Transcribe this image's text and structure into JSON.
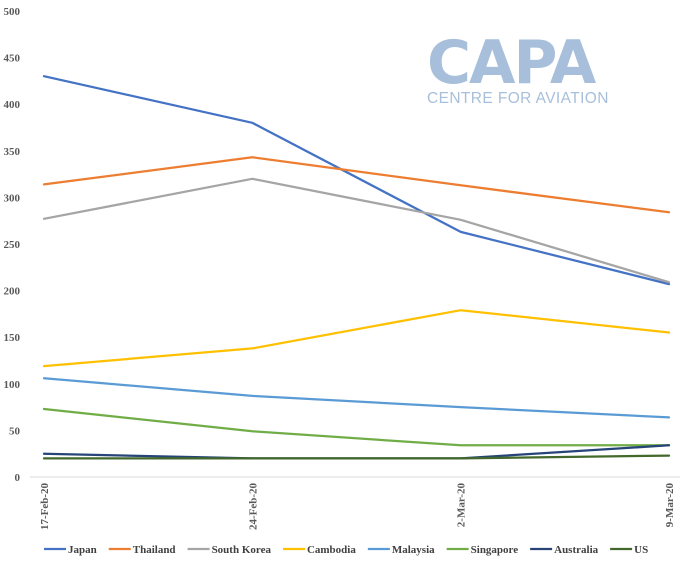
{
  "logo": {
    "main": "CAPA",
    "sub": "CENTRE FOR AVIATION",
    "color": "#a7bfdb"
  },
  "chart_data": {
    "type": "line",
    "title": "",
    "xlabel": "",
    "ylabel": "",
    "categories": [
      "17-Feb-20",
      "24-Feb-20",
      "2-Mar-20",
      "9-Mar-20"
    ],
    "ylim": [
      0,
      500
    ],
    "yticks": [
      0,
      50,
      100,
      150,
      200,
      250,
      300,
      350,
      400,
      450,
      500
    ],
    "grid": false,
    "legend_position": "bottom",
    "series": [
      {
        "name": "Japan",
        "color": "#4472c4",
        "values": [
          430,
          380,
          263,
          207
        ]
      },
      {
        "name": "Thailand",
        "color": "#ed7d31",
        "values": [
          314,
          343,
          313,
          284
        ]
      },
      {
        "name": "South Korea",
        "color": "#a5a5a5",
        "values": [
          277,
          320,
          276,
          209
        ]
      },
      {
        "name": "Cambodia",
        "color": "#ffc000",
        "values": [
          119,
          138,
          179,
          155
        ]
      },
      {
        "name": "Malaysia",
        "color": "#5b9bd5",
        "values": [
          106,
          87,
          75,
          64
        ]
      },
      {
        "name": "Singapore",
        "color": "#70ad47",
        "values": [
          73,
          49,
          34,
          34
        ]
      },
      {
        "name": "Australia",
        "color": "#264478",
        "values": [
          25,
          20,
          20,
          34
        ]
      },
      {
        "name": "US",
        "color": "#43682b",
        "values": [
          20,
          20,
          20,
          23
        ]
      }
    ]
  }
}
